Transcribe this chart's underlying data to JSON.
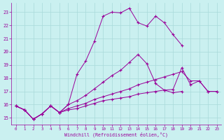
{
  "xlabel": "Windchill (Refroidissement éolien,°C)",
  "background_color": "#caf0f0",
  "grid_color": "#a8dada",
  "line_color": "#990099",
  "xlim": [
    -0.5,
    23.5
  ],
  "ylim": [
    14.5,
    23.7
  ],
  "xticks": [
    0,
    1,
    2,
    3,
    4,
    5,
    6,
    7,
    8,
    9,
    10,
    11,
    12,
    13,
    14,
    15,
    16,
    17,
    18,
    19,
    20,
    21,
    22,
    23
  ],
  "yticks": [
    15,
    16,
    17,
    18,
    19,
    20,
    21,
    22,
    23
  ],
  "line1_x": [
    0,
    1,
    2,
    3,
    4,
    5,
    6,
    7,
    8,
    9,
    10,
    11,
    12,
    13,
    14,
    15,
    16,
    17,
    18,
    19
  ],
  "line1_y": [
    15.9,
    15.6,
    14.9,
    15.3,
    15.9,
    15.4,
    16.0,
    18.3,
    19.3,
    20.8,
    22.7,
    23.0,
    22.95,
    23.3,
    22.2,
    21.95,
    22.7,
    22.2,
    21.3,
    20.5
  ],
  "line2_x": [
    0,
    1,
    2,
    3,
    4,
    5,
    6,
    7,
    8,
    9,
    10,
    11,
    12,
    13,
    14,
    15,
    16,
    17,
    18,
    19,
    20,
    21,
    22,
    23
  ],
  "line2_y": [
    15.9,
    15.6,
    14.9,
    15.3,
    15.9,
    15.4,
    15.6,
    15.7,
    15.9,
    16.1,
    16.3,
    16.4,
    16.5,
    16.6,
    16.8,
    16.9,
    17.0,
    17.1,
    17.15,
    18.8,
    17.5,
    17.8,
    17.0,
    17.0
  ],
  "line3_x": [
    0,
    1,
    2,
    3,
    4,
    5,
    6,
    7,
    8,
    9,
    10,
    11,
    12,
    13,
    14,
    15,
    16,
    17,
    18,
    19,
    20,
    21,
    22,
    23
  ],
  "line3_y": [
    15.9,
    15.6,
    14.9,
    15.3,
    15.9,
    15.4,
    15.7,
    15.9,
    16.1,
    16.4,
    16.6,
    16.8,
    17.0,
    17.2,
    17.5,
    17.7,
    17.9,
    18.1,
    18.3,
    18.5,
    17.8,
    17.8,
    17.0,
    17.0
  ],
  "line4_x": [
    0,
    1,
    2,
    3,
    4,
    5,
    6,
    7,
    8,
    9,
    10,
    11,
    12,
    13,
    14,
    15,
    16,
    17,
    18,
    19
  ],
  "line4_y": [
    15.9,
    15.6,
    14.9,
    15.3,
    15.9,
    15.4,
    16.0,
    16.3,
    16.7,
    17.2,
    17.7,
    18.2,
    18.6,
    19.2,
    19.8,
    19.1,
    17.6,
    17.1,
    16.9,
    17.0
  ]
}
